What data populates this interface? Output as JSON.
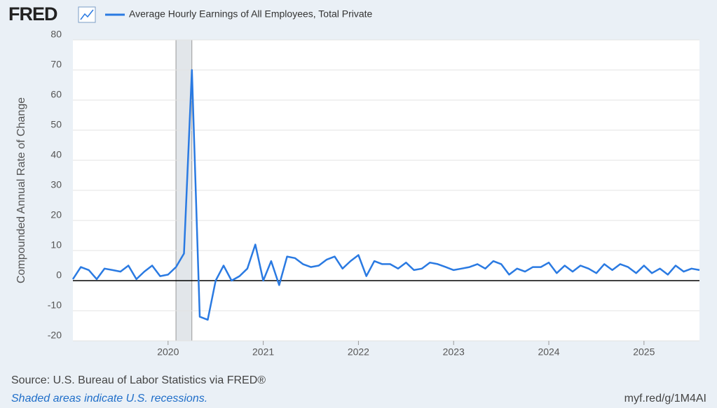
{
  "header": {
    "logo": "FRED"
  },
  "chart_data": {
    "type": "line",
    "ylabel": "Compounded Annual Rate of Change",
    "source": "Source: U.S. Bureau of Labor Statistics via FRED®",
    "note": "Shaded areas indicate U.S. recessions.",
    "link": "myf.red/g/1M4AI",
    "x": [
      2019.0,
      2019.083,
      2019.167,
      2019.25,
      2019.333,
      2019.417,
      2019.5,
      2019.583,
      2019.667,
      2019.75,
      2019.833,
      2019.917,
      2020.0,
      2020.083,
      2020.167,
      2020.25,
      2020.333,
      2020.417,
      2020.5,
      2020.583,
      2020.667,
      2020.75,
      2020.833,
      2020.917,
      2021.0,
      2021.083,
      2021.167,
      2021.25,
      2021.333,
      2021.417,
      2021.5,
      2021.583,
      2021.667,
      2021.75,
      2021.833,
      2021.917,
      2022.0,
      2022.083,
      2022.167,
      2022.25,
      2022.333,
      2022.417,
      2022.5,
      2022.583,
      2022.667,
      2022.75,
      2022.833,
      2022.917,
      2023.0,
      2023.083,
      2023.167,
      2023.25,
      2023.333,
      2023.417,
      2023.5,
      2023.583,
      2023.667,
      2023.75,
      2023.833,
      2023.917,
      2024.0,
      2024.083,
      2024.167,
      2024.25,
      2024.333,
      2024.417,
      2024.5,
      2024.583,
      2024.667,
      2024.75,
      2024.833,
      2024.917,
      2025.0,
      2025.083,
      2025.167,
      2025.25,
      2025.333,
      2025.417,
      2025.5,
      2025.583
    ],
    "series": [
      {
        "name": "Average Hourly Earnings of All Employees, Total Private",
        "color": "#2a7ae2",
        "values": [
          0.5,
          4.5,
          3.5,
          0.5,
          4,
          3.5,
          3,
          5,
          0.5,
          3,
          5,
          1.5,
          2,
          4.5,
          9,
          70,
          -12,
          -13,
          0,
          5,
          0,
          1.5,
          4,
          12,
          0,
          6.5,
          -1.5,
          8,
          7.5,
          5.5,
          4.5,
          5,
          7,
          8,
          4,
          6.5,
          8.5,
          1.5,
          6.5,
          5.5,
          5.5,
          4,
          6,
          3.5,
          4,
          6,
          5.5,
          4.5,
          3.5,
          4,
          4.5,
          5.5,
          4,
          6.5,
          5.5,
          2,
          4,
          3,
          4.5,
          4.5,
          6,
          2.5,
          5,
          3,
          5,
          4,
          2.5,
          5.5,
          3.5,
          5.5,
          4.5,
          2.5,
          5,
          2.5,
          4,
          2,
          5,
          3,
          4,
          3.5
        ]
      }
    ],
    "recessions": [
      {
        "start": 2020.083,
        "end": 2020.25
      }
    ],
    "xlim": [
      2019.0,
      2025.583
    ],
    "xticks": [
      2020,
      2021,
      2022,
      2023,
      2024,
      2025
    ],
    "ylim": [
      -20,
      80
    ],
    "yticks": [
      -20,
      -10,
      0,
      10,
      20,
      30,
      40,
      50,
      60,
      70,
      80
    ],
    "grid": true
  }
}
